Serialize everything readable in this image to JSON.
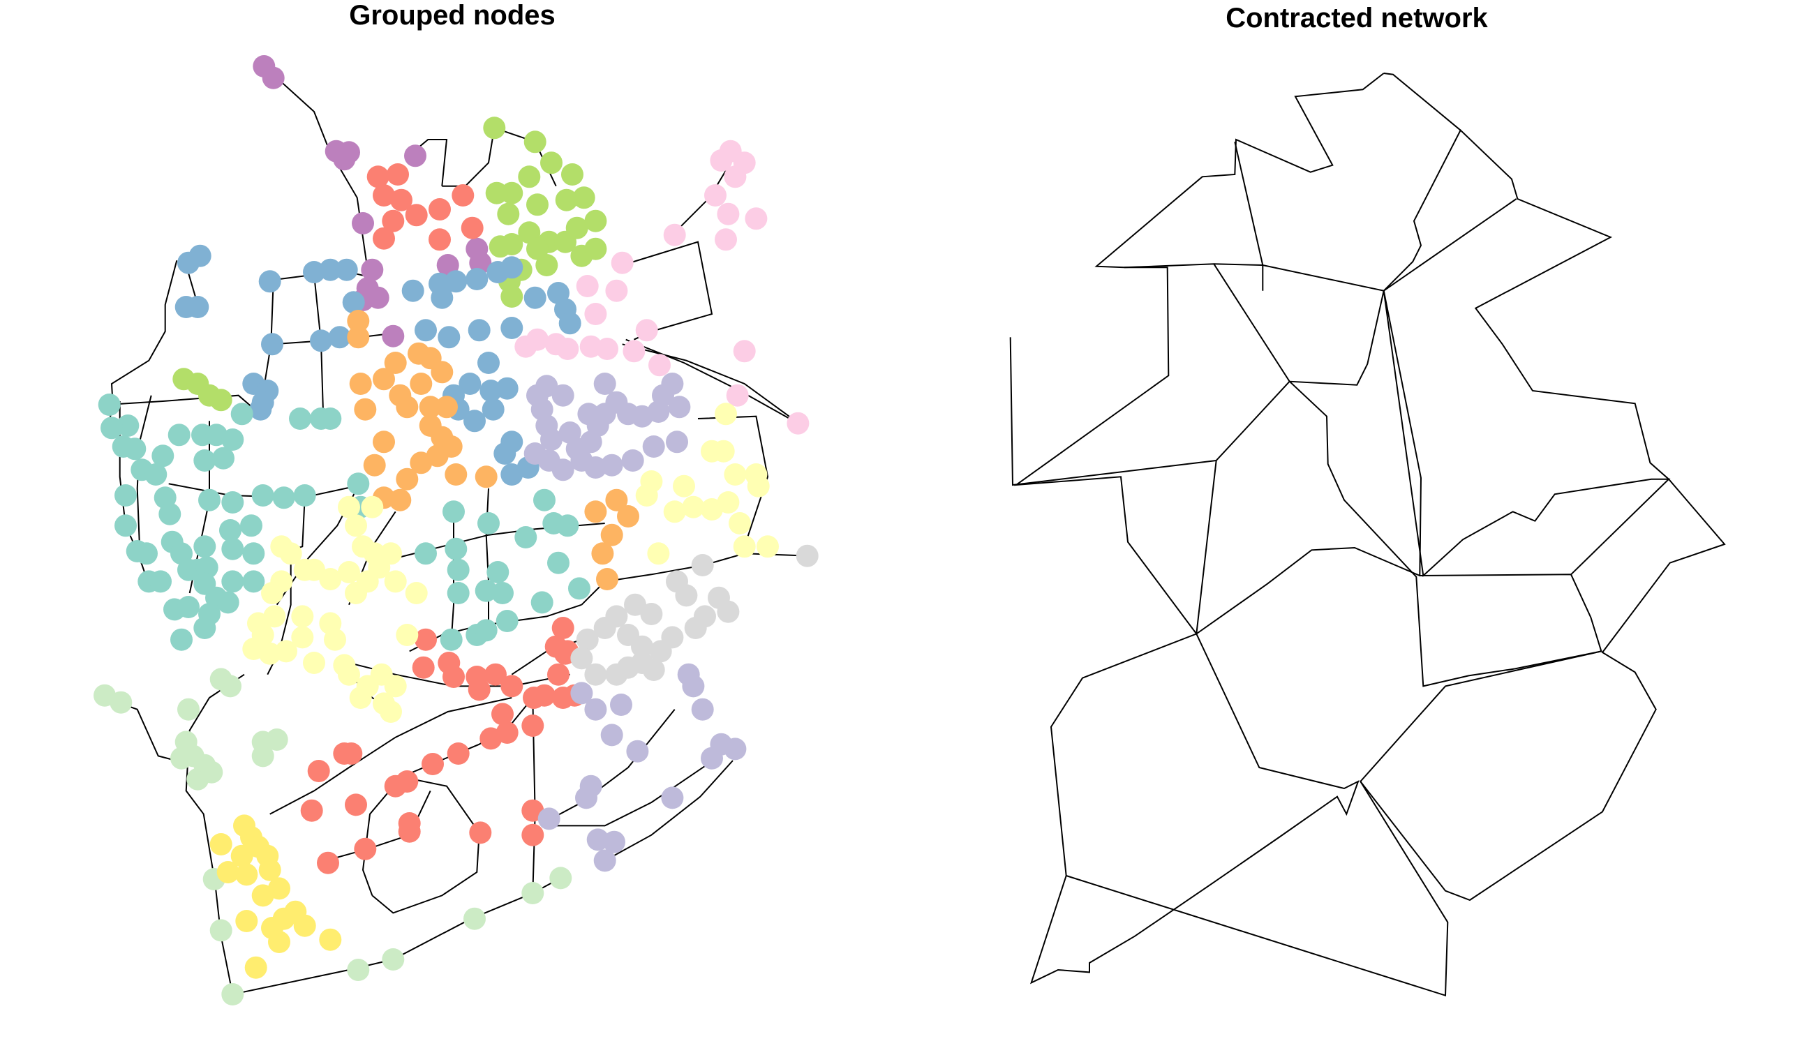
{
  "figure": {
    "left_panel": {
      "title": "Grouped nodes"
    },
    "right_panel": {
      "title": "Contracted network"
    }
  },
  "colors": {
    "edge": "#000000",
    "groups": [
      "#8DD3C7",
      "#FFFFB3",
      "#BEBADA",
      "#FB8072",
      "#80B1D3",
      "#FDB462",
      "#B3DE69",
      "#FCCDE5",
      "#D9D9D9",
      "#BC80BD",
      "#CCEBC5",
      "#FFED6F"
    ]
  }
}
